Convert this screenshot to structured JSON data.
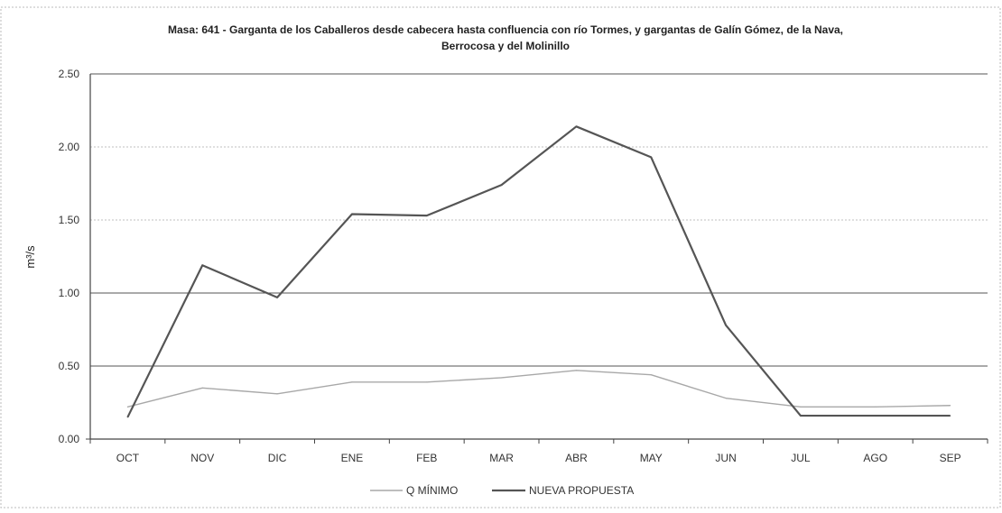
{
  "chart_data": {
    "type": "line",
    "title": "Masa: 641 - Garganta de los Caballeros desde cabecera hasta confluencia con río Tormes, y gargantas de Galín Gómez, de la Nava,",
    "title_line2": "Berrocosa y del Molinillo",
    "xlabel": "",
    "ylabel": "m³/s",
    "ylim": [
      0,
      2.5
    ],
    "yticks": [
      "0.00",
      "0.50",
      "1.00",
      "1.50",
      "2.00",
      "2.50"
    ],
    "categories": [
      "OCT",
      "NOV",
      "DIC",
      "ENE",
      "FEB",
      "MAR",
      "ABR",
      "MAY",
      "JUN",
      "JUL",
      "AGO",
      "SEP"
    ],
    "series": [
      {
        "name": "Q MÍNIMO",
        "color": "#a8a8a8",
        "values": [
          0.22,
          0.35,
          0.31,
          0.39,
          0.39,
          0.42,
          0.47,
          0.44,
          0.28,
          0.22,
          0.22,
          0.23
        ]
      },
      {
        "name": "NUEVA PROPUESTA",
        "color": "#555555",
        "values": [
          0.15,
          1.19,
          0.97,
          1.54,
          1.53,
          1.74,
          2.14,
          1.93,
          0.78,
          0.16,
          0.16,
          0.16
        ]
      }
    ],
    "legend_position": "bottom",
    "grid": true
  }
}
